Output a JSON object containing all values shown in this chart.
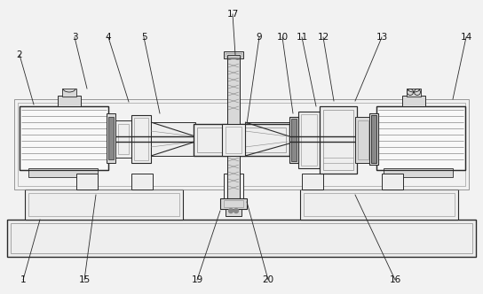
{
  "bg_color": "#f2f2f2",
  "dark": "#2a2a2a",
  "mid": "#888888",
  "light": "#d8d8d8",
  "vlight": "#eeeeee",
  "white": "#f8f8f8",
  "figsize": [
    5.44,
    3.32
  ],
  "dpi": 100,
  "labels_info": [
    [
      2,
      22,
      62,
      38,
      118
    ],
    [
      3,
      84,
      42,
      98,
      100
    ],
    [
      4,
      122,
      42,
      145,
      115
    ],
    [
      5,
      162,
      42,
      180,
      128
    ],
    [
      17,
      262,
      16,
      265,
      62
    ],
    [
      9,
      292,
      42,
      278,
      140
    ],
    [
      10,
      318,
      42,
      330,
      128
    ],
    [
      11,
      340,
      42,
      356,
      120
    ],
    [
      12,
      364,
      42,
      376,
      114
    ],
    [
      13,
      430,
      42,
      400,
      114
    ],
    [
      14,
      525,
      42,
      510,
      112
    ],
    [
      1,
      26,
      316,
      45,
      248
    ],
    [
      15,
      95,
      316,
      108,
      220
    ],
    [
      16,
      445,
      316,
      400,
      220
    ],
    [
      19,
      222,
      316,
      248,
      238
    ],
    [
      20,
      302,
      316,
      278,
      228
    ]
  ]
}
